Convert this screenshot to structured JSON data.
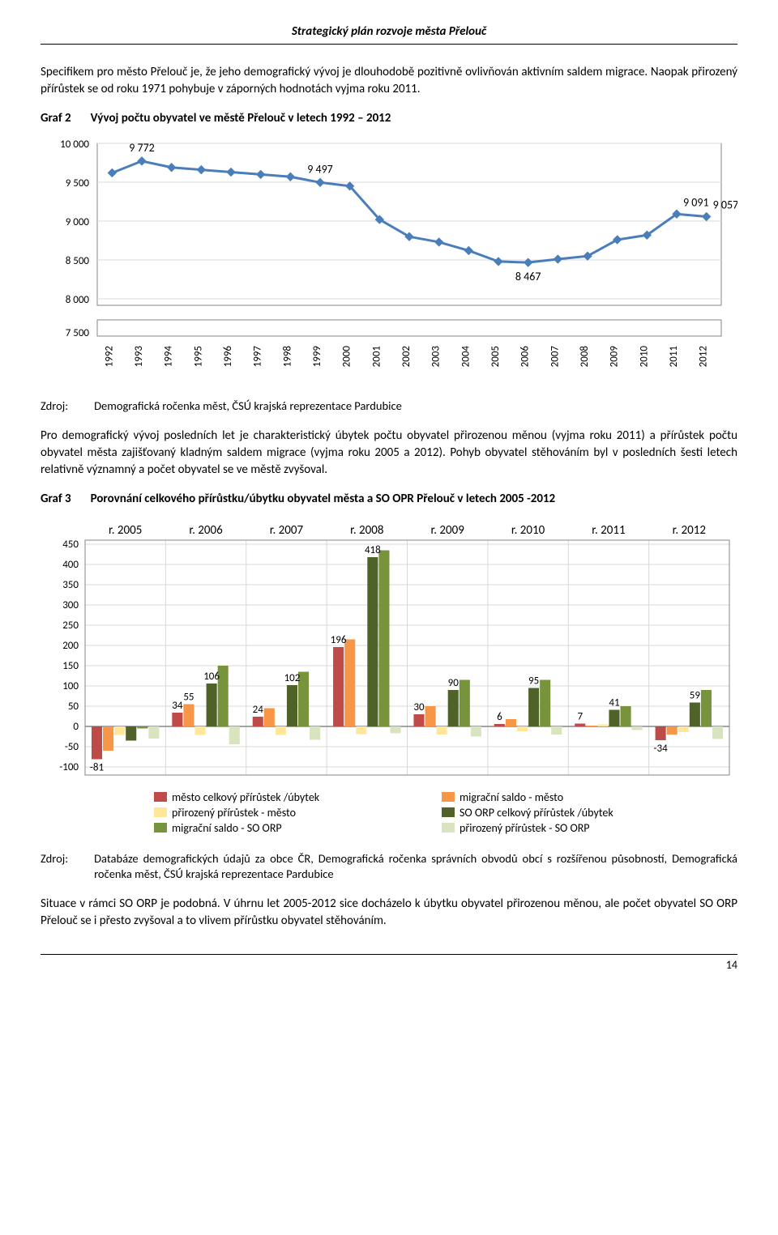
{
  "header": "Strategický plán rozvoje města Přelouč",
  "para1": "Specifikem pro město Přelouč je, že jeho demografický vývoj je dlouhodobě pozitivně ovlivňován aktivním saldem migrace. Naopak přirozený přírůstek se od roku 1971 pohybuje v záporných hodnotách vyjma roku 2011.",
  "graf2_label": "Graf 2",
  "graf2_title": "Vývoj počtu obyvatel ve městě Přelouč v letech 1992 – 2012",
  "chart1": {
    "type": "line",
    "years": [
      "1992",
      "1993",
      "1994",
      "1995",
      "1996",
      "1997",
      "1998",
      "1999",
      "2000",
      "2001",
      "2002",
      "2003",
      "2004",
      "2005",
      "2006",
      "2007",
      "2008",
      "2009",
      "2010",
      "2011",
      "2012"
    ],
    "values": [
      9620,
      9772,
      9690,
      9660,
      9630,
      9600,
      9570,
      9497,
      9450,
      9020,
      8800,
      8730,
      8620,
      8480,
      8467,
      8510,
      8550,
      8760,
      8820,
      9091,
      9057
    ],
    "data_labels": [
      {
        "i": 1,
        "text": "9 772"
      },
      {
        "i": 7,
        "text": "9 497"
      },
      {
        "i": 14,
        "text": "8 467"
      },
      {
        "i": 19,
        "text": "9 091"
      },
      {
        "i": 20,
        "text": "9 057"
      }
    ],
    "yticks": [
      7500,
      8000,
      8500,
      9000,
      9500,
      10000
    ],
    "ytick_labels": [
      "7 500",
      "8 000",
      "8 500",
      "9 000",
      "9 500",
      "10 000"
    ],
    "ylim": [
      7500,
      10000
    ],
    "line_color": "#4a7ebb",
    "marker_fill": "#4a7ebb",
    "axis_color": "#868686",
    "grid_color": "#d9d9d9",
    "background": "#ffffff",
    "label_fontsize": 14,
    "tick_fontsize": 13
  },
  "zdroj1_label": "Zdroj:",
  "zdroj1_text": "Demografická ročenka měst, ČSÚ krajská reprezentace Pardubice",
  "para2": "Pro demografický vývoj posledních let je charakteristický úbytek počtu obyvatel přirozenou měnou (vyjma roku 2011) a přírůstek počtu obyvatel města zajišťovaný kladným saldem migrace (vyjma roku 2005 a 2012). Pohyb obyvatel stěhováním byl v posledních šesti letech relativně významný a počet obyvatel se ve městě zvyšoval.",
  "graf3_label": "Graf 3",
  "graf3_title": "Porovnání celkového přírůstku/úbytku obyvatel města a SO OPR Přelouč v letech 2005 -2012",
  "chart2": {
    "type": "bar",
    "year_headers": [
      "r. 2005",
      "r. 2006",
      "r. 2007",
      "r. 2008",
      "r. 2009",
      "r. 2010",
      "r. 2011",
      "r. 2012"
    ],
    "yticks": [
      -100,
      -50,
      0,
      50,
      100,
      150,
      200,
      250,
      300,
      350,
      400,
      450
    ],
    "ylim": [
      -120,
      460
    ],
    "series": [
      {
        "name": "město celkový přírůstek /úbytek",
        "color": "#be4b48",
        "values": [
          -81,
          34,
          24,
          196,
          30,
          6,
          7,
          -34
        ]
      },
      {
        "name": "migrační saldo - město",
        "color": "#f79646",
        "values": [
          -60,
          55,
          45,
          215,
          50,
          18,
          2,
          -20
        ]
      },
      {
        "name": "přirozený přírůstek - město",
        "color": "#ffe699",
        "values": [
          -21,
          -21,
          -21,
          -19,
          -20,
          -12,
          5,
          -14
        ]
      },
      {
        "name": "SO ORP celkový přírůstek /úbytek",
        "color": "#4f6228",
        "values": [
          -35,
          106,
          102,
          418,
          90,
          95,
          41,
          59
        ]
      },
      {
        "name": "migrační saldo - SO ORP",
        "color": "#77933c",
        "values": [
          -5,
          150,
          135,
          435,
          115,
          115,
          50,
          90
        ]
      },
      {
        "name": "přirozený přírůstek - SO ORP",
        "color": "#d7e4bd",
        "values": [
          -30,
          -44,
          -33,
          -17,
          -25,
          -20,
          -9,
          -31
        ]
      }
    ],
    "data_labels": [
      {
        "year": 0,
        "series": 0,
        "text": "-81",
        "pos": "below"
      },
      {
        "year": 1,
        "series": 1,
        "text": "55",
        "pos": "above"
      },
      {
        "year": 1,
        "series": 0,
        "text": "34",
        "pos": "above"
      },
      {
        "year": 1,
        "series": 3,
        "text": "106",
        "pos": "above"
      },
      {
        "year": 2,
        "series": 0,
        "text": "24",
        "pos": "above"
      },
      {
        "year": 2,
        "series": 3,
        "text": "102",
        "pos": "above"
      },
      {
        "year": 3,
        "series": 0,
        "text": "196",
        "pos": "above"
      },
      {
        "year": 3,
        "series": 3,
        "text": "418",
        "pos": "above"
      },
      {
        "year": 4,
        "series": 0,
        "text": "30",
        "pos": "above"
      },
      {
        "year": 4,
        "series": 3,
        "text": "90",
        "pos": "above"
      },
      {
        "year": 5,
        "series": 0,
        "text": "6",
        "pos": "above"
      },
      {
        "year": 5,
        "series": 3,
        "text": "95",
        "pos": "above"
      },
      {
        "year": 6,
        "series": 0,
        "text": "7",
        "pos": "above"
      },
      {
        "year": 6,
        "series": 3,
        "text": "41",
        "pos": "above"
      },
      {
        "year": 7,
        "series": 0,
        "text": "-34",
        "pos": "below"
      },
      {
        "year": 7,
        "series": 3,
        "text": "59",
        "pos": "above"
      }
    ],
    "axis_color": "#868686",
    "grid_color": "#d9d9d9",
    "background": "#ffffff",
    "tick_fontsize": 13,
    "header_fontsize": 15
  },
  "zdroj2_label": "Zdroj:",
  "zdroj2_text": "Databáze demografických údajů za obce ČR, Demografická ročenka správních obvodů obcí s rozšířenou působností, Demografická ročenka měst, ČSÚ krajská reprezentace Pardubice",
  "para3": "Situace v rámci SO ORP je podobná. V úhrnu let 2005-2012 sice docházelo k úbytku obyvatel přirozenou měnou, ale počet obyvatel SO ORP Přelouč se i přesto zvyšoval a to vlivem přírůstku obyvatel stěhováním.",
  "page_num": "14"
}
